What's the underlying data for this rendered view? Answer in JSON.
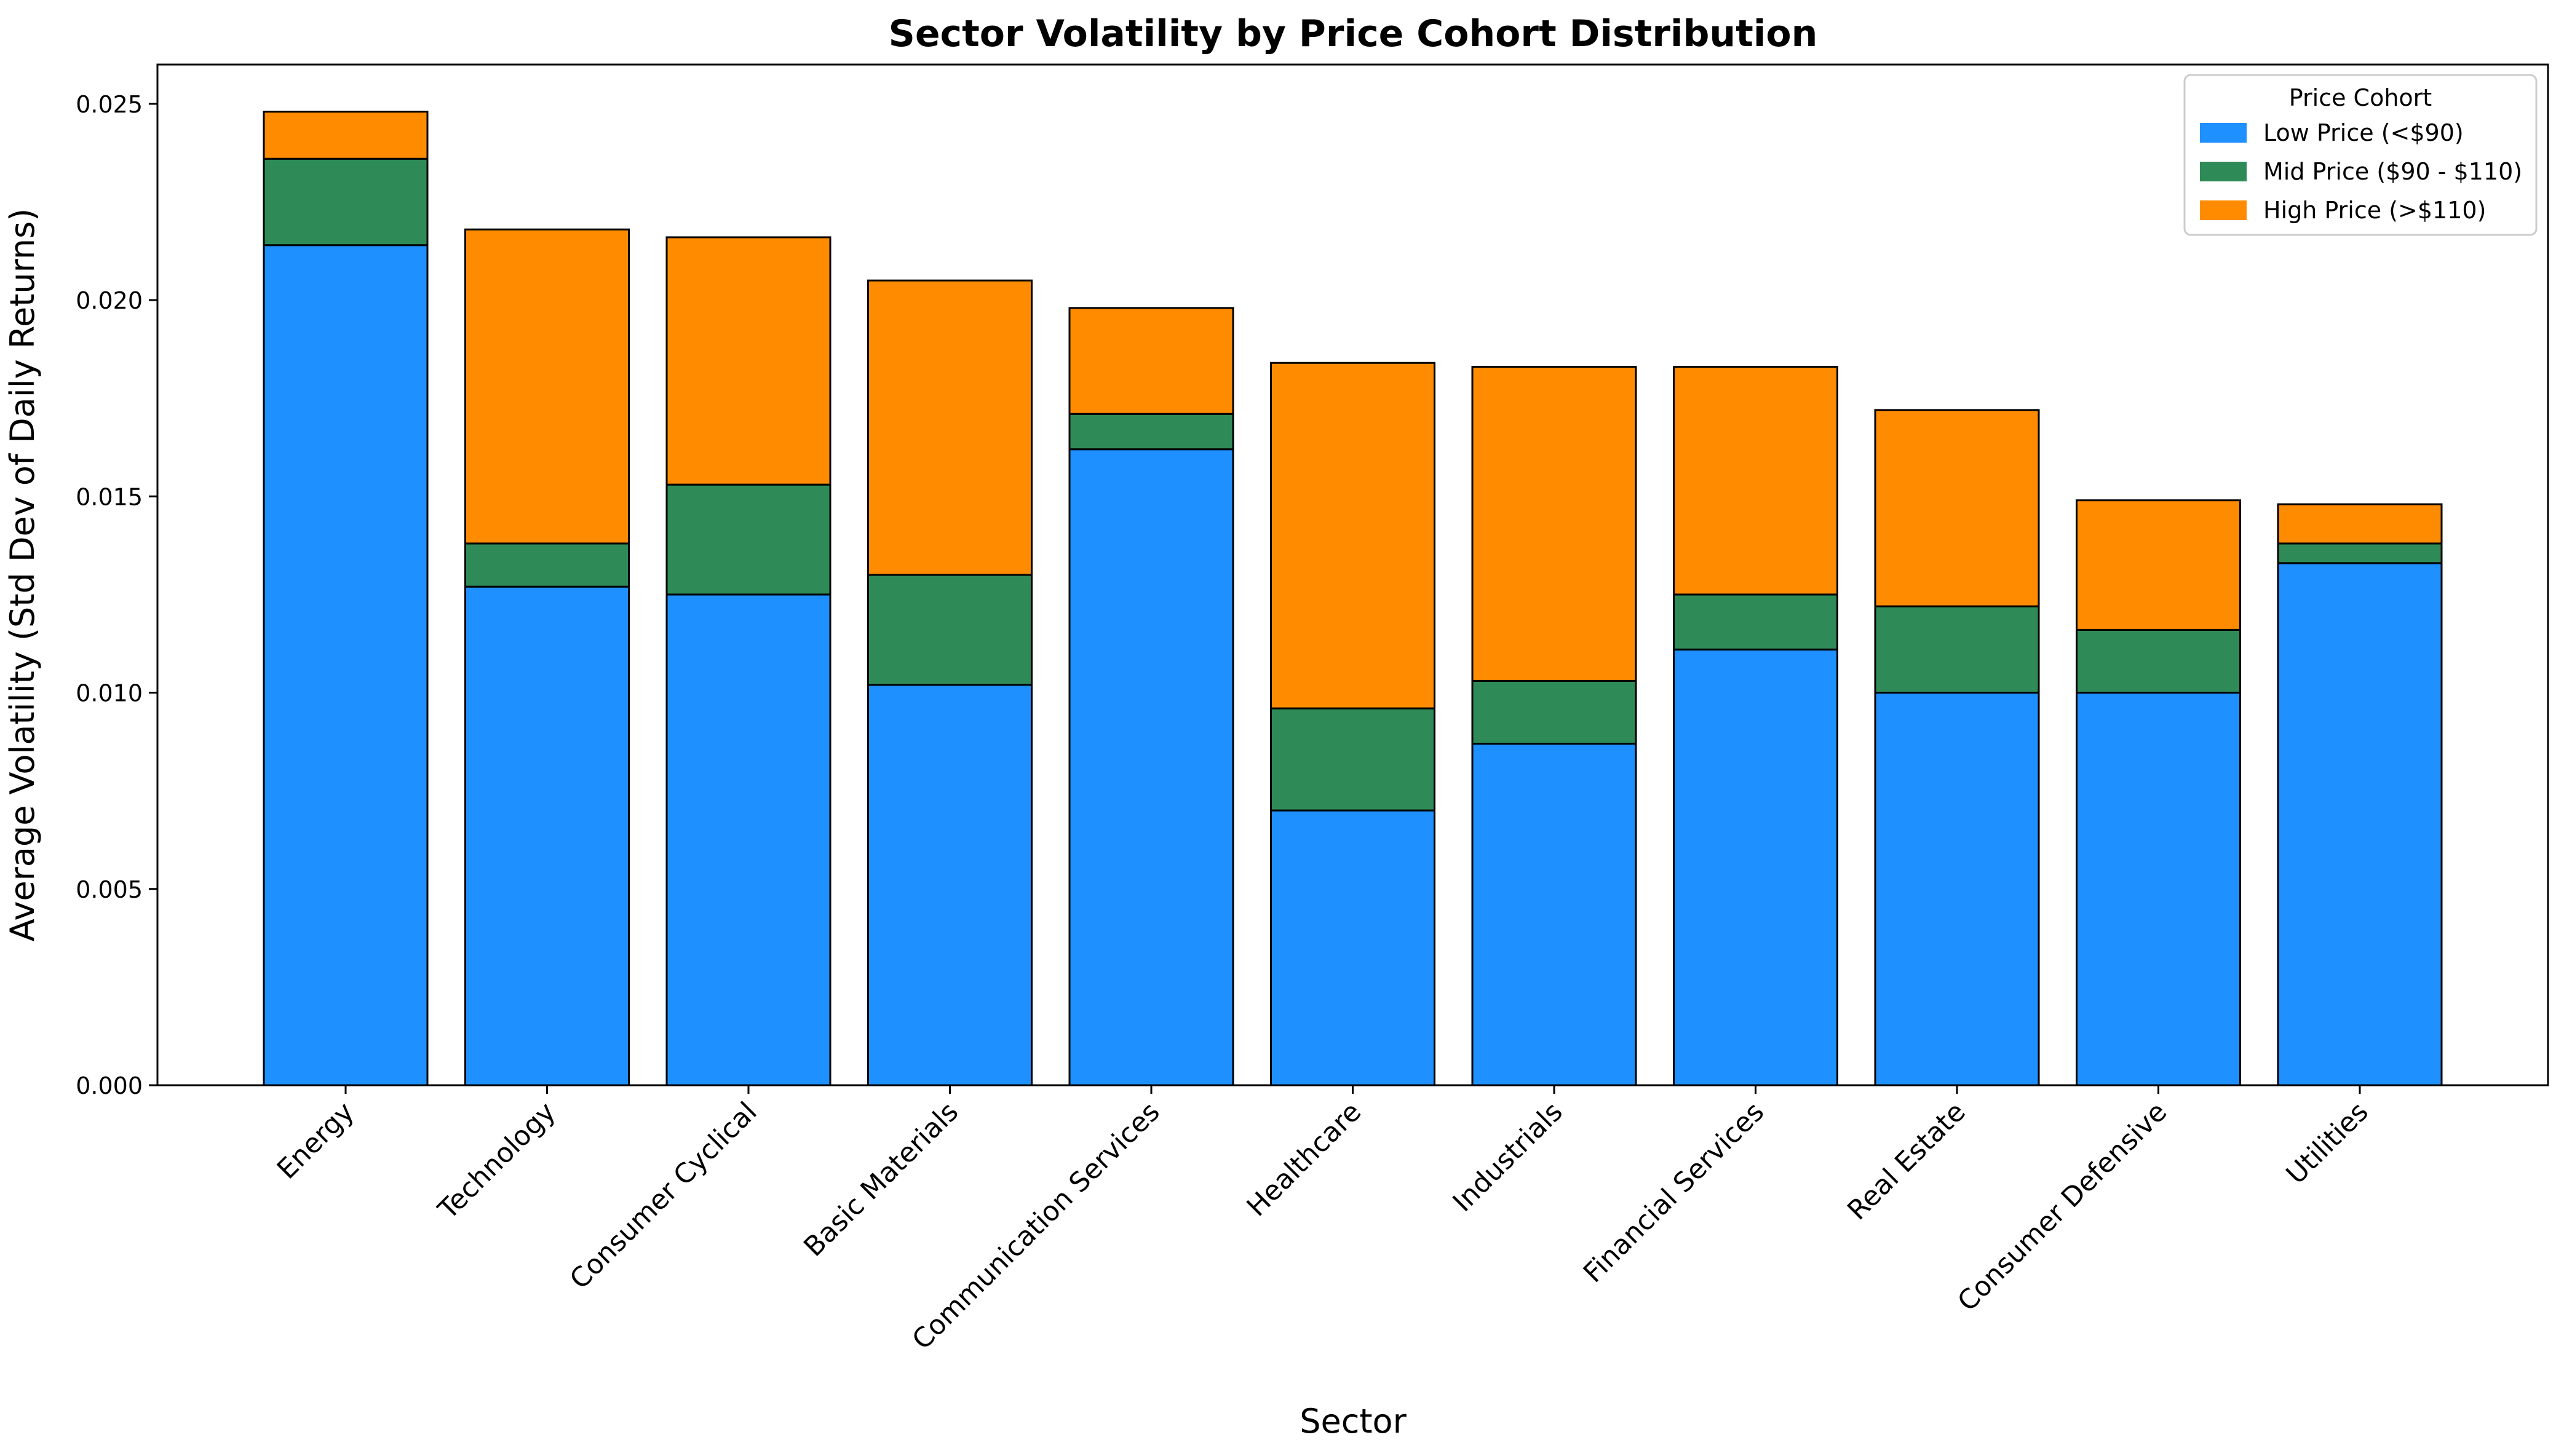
{
  "chart_data": {
    "type": "bar",
    "stacked": true,
    "title": "Sector Volatility by Price Cohort Distribution",
    "xlabel": "Sector",
    "ylabel": "Average Volatility (Std Dev of Daily Returns)",
    "ylim": [
      0,
      0.026
    ],
    "yticks": [
      "0.000",
      "0.005",
      "0.010",
      "0.015",
      "0.020",
      "0.025"
    ],
    "grid": false,
    "legend": {
      "title": "Price Cohort",
      "placement": "top-right"
    },
    "categories": [
      "Energy",
      "Technology",
      "Consumer Cyclical",
      "Basic Materials",
      "Communication Services",
      "Healthcare",
      "Industrials",
      "Financial Services",
      "Real Estate",
      "Consumer Defensive",
      "Utilities"
    ],
    "series": [
      {
        "name": "Low Price (<$90)",
        "color": "#1e90ff",
        "values": [
          0.0214,
          0.0127,
          0.0125,
          0.0102,
          0.0162,
          0.007,
          0.0087,
          0.0111,
          0.01,
          0.01,
          0.0133
        ]
      },
      {
        "name": "Mid Price ($90 - $110)",
        "color": "#2e8b57",
        "values": [
          0.0022,
          0.0011,
          0.0028,
          0.0028,
          0.0009,
          0.0026,
          0.0016,
          0.0014,
          0.0022,
          0.0016,
          0.0005
        ]
      },
      {
        "name": "High Price (>$110)",
        "color": "#ff8c00",
        "values": [
          0.0012,
          0.008,
          0.0063,
          0.0075,
          0.0027,
          0.0088,
          0.008,
          0.0058,
          0.005,
          0.0033,
          0.001
        ]
      }
    ]
  }
}
